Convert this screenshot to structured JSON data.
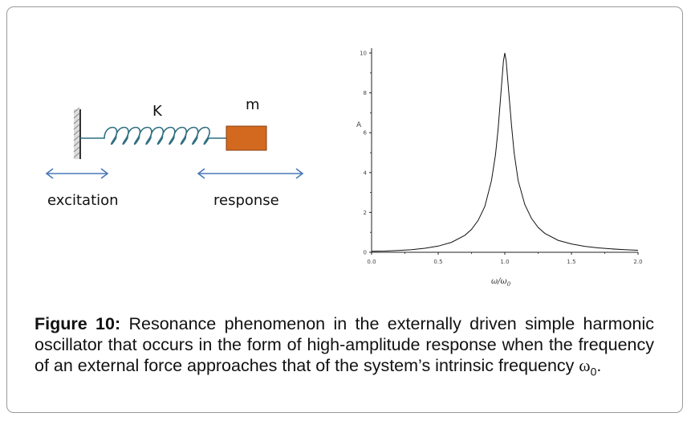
{
  "schematic": {
    "spring_label": "K",
    "mass_label": "m",
    "excitation_label": "excitation",
    "response_label": "response",
    "mass_color": "#d2691e",
    "spring_color": "#2f6f80",
    "arrow_color": "#4a78b8"
  },
  "chart_data": {
    "type": "line",
    "title": "",
    "xlabel": "ω/ω",
    "xlabel_sub": "0",
    "ylabel": "A",
    "xlim": [
      0.0,
      2.0
    ],
    "ylim": [
      0,
      10
    ],
    "xticks": [
      "0.0",
      "0.5",
      "1.0",
      "1.5",
      "2.0"
    ],
    "yticks": [
      "0",
      "2",
      "4",
      "6",
      "8",
      "10"
    ],
    "grid": false,
    "series": [
      {
        "x": [
          0.0,
          0.1,
          0.2,
          0.3,
          0.4,
          0.5,
          0.6,
          0.7,
          0.75,
          0.8,
          0.85,
          0.9,
          0.93,
          0.95,
          0.97,
          0.99,
          1.0,
          1.01,
          1.03,
          1.05,
          1.07,
          1.1,
          1.15,
          1.2,
          1.25,
          1.3,
          1.4,
          1.5,
          1.6,
          1.7,
          1.8,
          1.9,
          2.0
        ],
        "values": [
          0.05,
          0.06,
          0.09,
          0.13,
          0.2,
          0.31,
          0.5,
          0.85,
          1.15,
          1.6,
          2.3,
          3.6,
          4.9,
          6.2,
          7.9,
          9.6,
          10.0,
          9.6,
          8.0,
          6.4,
          5.0,
          3.6,
          2.4,
          1.7,
          1.25,
          0.95,
          0.6,
          0.42,
          0.3,
          0.22,
          0.17,
          0.13,
          0.1
        ]
      }
    ]
  },
  "caption": {
    "figure_label": "Figure 10:",
    "text": " Resonance phenomenon in the externally driven simple harmonic oscillator that occurs in the form of high-amplitude response when the frequency of an external force approaches that of the system’s intrinsic frequency ",
    "symbol": "ω",
    "symbol_sub": "0",
    "end": "."
  }
}
